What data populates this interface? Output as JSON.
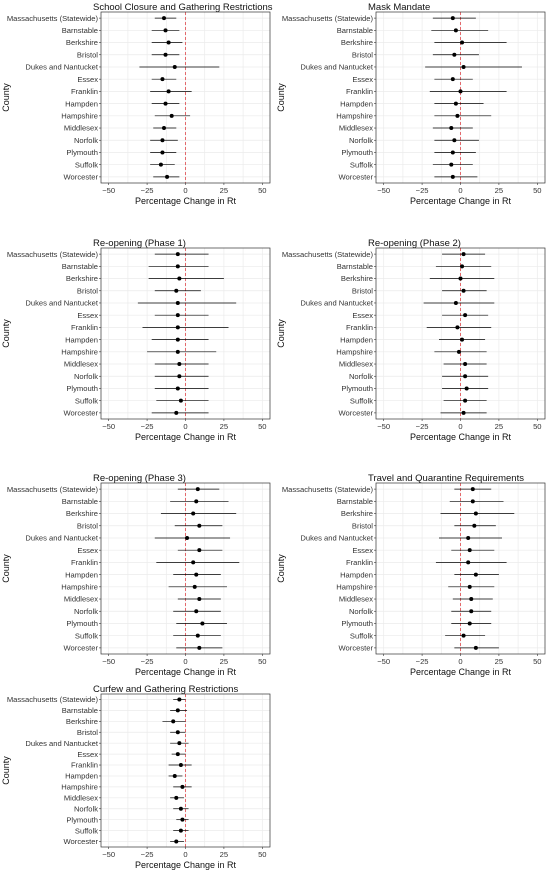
{
  "chart_data": [
    {
      "type": "forest",
      "title": "School Closure and Gathering Restrictions",
      "xlabel": "Percentage Change in Rt",
      "ylabel": "County",
      "xlim": [
        -55,
        55
      ],
      "xticks": [
        -50,
        -25,
        0,
        25,
        50
      ],
      "reference_line": 0,
      "categories": [
        "Massachusetts (Statewide)",
        "Barnstable",
        "Berkshire",
        "Bristol",
        "Dukes and Nantucket",
        "Essex",
        "Franklin",
        "Hampden",
        "Hampshire",
        "Middlesex",
        "Norfolk",
        "Plymouth",
        "Suffolk",
        "Worcester"
      ],
      "estimate": [
        -14,
        -13,
        -11,
        -13,
        -7,
        -15,
        -11,
        -13,
        -9,
        -14,
        -15,
        -15,
        -16,
        -12
      ],
      "lower": [
        -20,
        -22,
        -22,
        -22,
        -30,
        -22,
        -23,
        -22,
        -20,
        -21,
        -23,
        -23,
        -23,
        -21
      ],
      "upper": [
        -6,
        -4,
        -2,
        -4,
        22,
        -6,
        4,
        -4,
        3,
        -6,
        -5,
        -6,
        -7,
        -4
      ]
    },
    {
      "type": "forest",
      "title": "Mask Mandate",
      "xlabel": "Percentage Change in Rt",
      "ylabel": "County",
      "xlim": [
        -55,
        55
      ],
      "xticks": [
        -50,
        -25,
        0,
        25,
        50
      ],
      "reference_line": 0,
      "categories": [
        "Massachusetts (Statewide)",
        "Barnstable",
        "Berkshire",
        "Bristol",
        "Dukes and Nantucket",
        "Essex",
        "Franklin",
        "Hampden",
        "Hampshire",
        "Middlesex",
        "Norfolk",
        "Plymouth",
        "Suffolk",
        "Worcester"
      ],
      "estimate": [
        -5,
        -3,
        1,
        -4,
        2,
        -5,
        0,
        -3,
        -2,
        -6,
        -4,
        -5,
        -6,
        -5
      ],
      "lower": [
        -18,
        -19,
        -17,
        -18,
        -23,
        -17,
        -20,
        -17,
        -17,
        -18,
        -17,
        -17,
        -18,
        -17
      ],
      "upper": [
        10,
        18,
        30,
        12,
        40,
        8,
        30,
        15,
        20,
        8,
        12,
        10,
        8,
        11
      ]
    },
    {
      "type": "forest",
      "title": "Re-opening (Phase 1)",
      "xlabel": "Percentage Change in Rt",
      "ylabel": "County",
      "xlim": [
        -55,
        55
      ],
      "xticks": [
        -50,
        -25,
        0,
        25,
        50
      ],
      "reference_line": 0,
      "categories": [
        "Massachusetts (Statewide)",
        "Barnstable",
        "Berkshire",
        "Bristol",
        "Dukes and Nantucket",
        "Essex",
        "Franklin",
        "Hampden",
        "Hampshire",
        "Middlesex",
        "Norfolk",
        "Plymouth",
        "Suffolk",
        "Worcester"
      ],
      "estimate": [
        -5,
        -5,
        -4,
        -6,
        -5,
        -5,
        -5,
        -5,
        -5,
        -4,
        -4,
        -5,
        -3,
        -6
      ],
      "lower": [
        -20,
        -24,
        -24,
        -20,
        -31,
        -20,
        -28,
        -22,
        -25,
        -20,
        -20,
        -20,
        -19,
        -22
      ],
      "upper": [
        15,
        15,
        25,
        10,
        33,
        15,
        28,
        15,
        20,
        15,
        15,
        15,
        15,
        15
      ]
    },
    {
      "type": "forest",
      "title": "Re-opening (Phase 2)",
      "xlabel": "Percentage Change in Rt",
      "ylabel": "County",
      "xlim": [
        -55,
        55
      ],
      "xticks": [
        -50,
        -25,
        0,
        25,
        50
      ],
      "reference_line": 0,
      "categories": [
        "Massachusetts (Statewide)",
        "Barnstable",
        "Berkshire",
        "Bristol",
        "Dukes and Nantucket",
        "Essex",
        "Franklin",
        "Hampden",
        "Hampshire",
        "Middlesex",
        "Norfolk",
        "Plymouth",
        "Suffolk",
        "Worcester"
      ],
      "estimate": [
        2,
        1,
        0,
        2,
        -3,
        3,
        -2,
        1,
        -1,
        3,
        3,
        4,
        3,
        2
      ],
      "lower": [
        -12,
        -16,
        -20,
        -12,
        -24,
        -12,
        -22,
        -14,
        -17,
        -11,
        -12,
        -12,
        -11,
        -13
      ],
      "upper": [
        16,
        20,
        22,
        17,
        22,
        18,
        20,
        16,
        17,
        17,
        18,
        18,
        17,
        17
      ]
    },
    {
      "type": "forest",
      "title": "Re-opening (Phase 3)",
      "xlabel": "Percentage Change in Rt",
      "ylabel": "County",
      "xlim": [
        -55,
        55
      ],
      "xticks": [
        -50,
        -25,
        0,
        25,
        50
      ],
      "reference_line": 0,
      "categories": [
        "Massachusetts (Statewide)",
        "Barnstable",
        "Berkshire",
        "Bristol",
        "Dukes and Nantucket",
        "Essex",
        "Franklin",
        "Hampden",
        "Hampshire",
        "Middlesex",
        "Norfolk",
        "Plymouth",
        "Suffolk",
        "Worcester"
      ],
      "estimate": [
        8,
        7,
        5,
        9,
        1,
        9,
        5,
        7,
        6,
        9,
        7,
        11,
        8,
        9
      ],
      "lower": [
        -5,
        -10,
        -16,
        -7,
        -20,
        -5,
        -19,
        -8,
        -11,
        -5,
        -8,
        -6,
        -8,
        -6
      ],
      "upper": [
        22,
        28,
        33,
        24,
        29,
        24,
        35,
        23,
        27,
        23,
        23,
        27,
        23,
        24
      ]
    },
    {
      "type": "forest",
      "title": "Travel and Quarantine Requirements",
      "xlabel": "Percentage Change in Rt",
      "ylabel": "County",
      "xlim": [
        -55,
        55
      ],
      "xticks": [
        -50,
        -25,
        0,
        25,
        50
      ],
      "reference_line": 0,
      "categories": [
        "Massachusetts (Statewide)",
        "Barnstable",
        "Berkshire",
        "Bristol",
        "Dukes and Nantucket",
        "Essex",
        "Franklin",
        "Hampden",
        "Hampshire",
        "Middlesex",
        "Norfolk",
        "Plymouth",
        "Suffolk",
        "Worcester"
      ],
      "estimate": [
        8,
        8,
        10,
        9,
        5,
        6,
        5,
        10,
        6,
        7,
        7,
        6,
        2,
        10
      ],
      "lower": [
        -4,
        -7,
        -13,
        -4,
        -14,
        -6,
        -16,
        -4,
        -8,
        -5,
        -6,
        -6,
        -10,
        -4
      ],
      "upper": [
        20,
        28,
        35,
        23,
        27,
        22,
        30,
        25,
        22,
        21,
        20,
        20,
        16,
        25
      ]
    },
    {
      "type": "forest",
      "title": "Curfew and Gathering Restrictions",
      "xlabel": "Percentage Change in Rt",
      "ylabel": "County",
      "xlim": [
        -55,
        55
      ],
      "xticks": [
        -50,
        -25,
        0,
        25,
        50
      ],
      "reference_line": 0,
      "categories": [
        "Massachusetts (Statewide)",
        "Barnstable",
        "Berkshire",
        "Bristol",
        "Dukes and Nantucket",
        "Essex",
        "Franklin",
        "Hampden",
        "Hampshire",
        "Middlesex",
        "Norfolk",
        "Plymouth",
        "Suffolk",
        "Worcester"
      ],
      "estimate": [
        -4,
        -5,
        -8,
        -5,
        -4,
        -5,
        -3,
        -7,
        -2,
        -6,
        -3,
        -2,
        -3,
        -6
      ],
      "lower": [
        -8,
        -10,
        -15,
        -10,
        -10,
        -9,
        -11,
        -11,
        -8,
        -10,
        -8,
        -6,
        -8,
        -10
      ],
      "upper": [
        0,
        1,
        0,
        0,
        2,
        0,
        4,
        -2,
        4,
        -1,
        2,
        2,
        2,
        -1
      ]
    }
  ],
  "style": {
    "point_color": "#000000",
    "ci_color": "#000000",
    "reference_color": "#e0484b",
    "grid_color": "#ebebeb",
    "border_color": "#333333"
  }
}
